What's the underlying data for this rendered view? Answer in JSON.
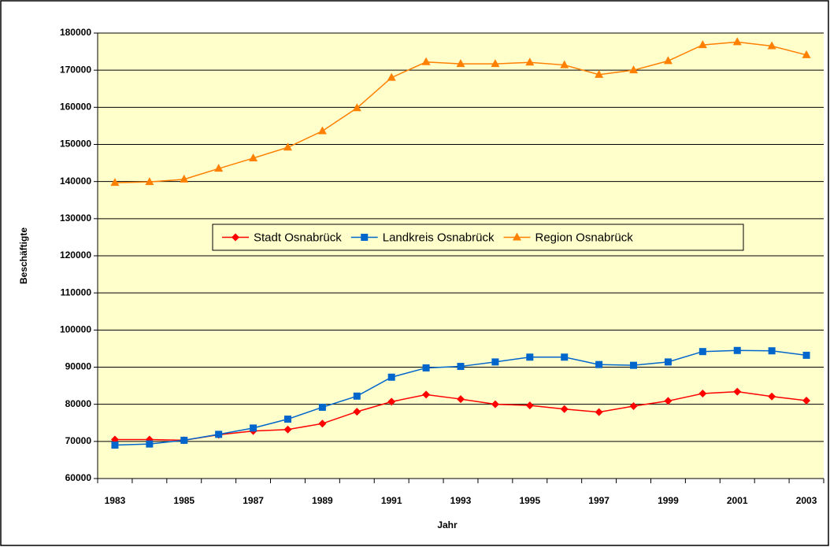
{
  "chart_data": {
    "type": "line",
    "xlabel": "Jahr",
    "ylabel": "Beschäftigte",
    "categories": [
      "1983",
      null,
      "1985",
      null,
      "1987",
      null,
      "1989",
      null,
      "1991",
      null,
      "1993",
      null,
      "1995",
      null,
      "1997",
      null,
      "1999",
      null,
      "2001",
      null,
      "2003"
    ],
    "series": [
      {
        "name": "Stadt Osnabrück",
        "color": "#ff0000",
        "marker": "diamond",
        "values": [
          70500,
          70500,
          70300,
          71800,
          72800,
          73200,
          74800,
          78000,
          80700,
          82600,
          81400,
          80000,
          79700,
          78700,
          77900,
          79500,
          80900,
          82900,
          83400,
          82100,
          81000
        ]
      },
      {
        "name": "Landkreis Osnabrück",
        "color": "#0066cc",
        "marker": "square",
        "values": [
          69000,
          69300,
          70300,
          71900,
          73600,
          76000,
          79200,
          82200,
          87300,
          89800,
          90200,
          91400,
          92700,
          92700,
          90700,
          90500,
          91400,
          94200,
          94500,
          94400,
          93200
        ]
      },
      {
        "name": "Region Osnabrück",
        "color": "#ff7f00",
        "marker": "triangle",
        "values": [
          139700,
          139900,
          140600,
          143500,
          146300,
          149200,
          153600,
          159800,
          168000,
          172200,
          171700,
          171700,
          172100,
          171400,
          168800,
          170000,
          172500,
          176800,
          177600,
          176500,
          174100
        ]
      }
    ],
    "ylim": [
      60000,
      180000
    ],
    "yticks": [
      60000,
      70000,
      80000,
      90000,
      100000,
      110000,
      120000,
      130000,
      140000,
      150000,
      160000,
      170000,
      180000
    ],
    "grid": true,
    "legend": "center"
  }
}
